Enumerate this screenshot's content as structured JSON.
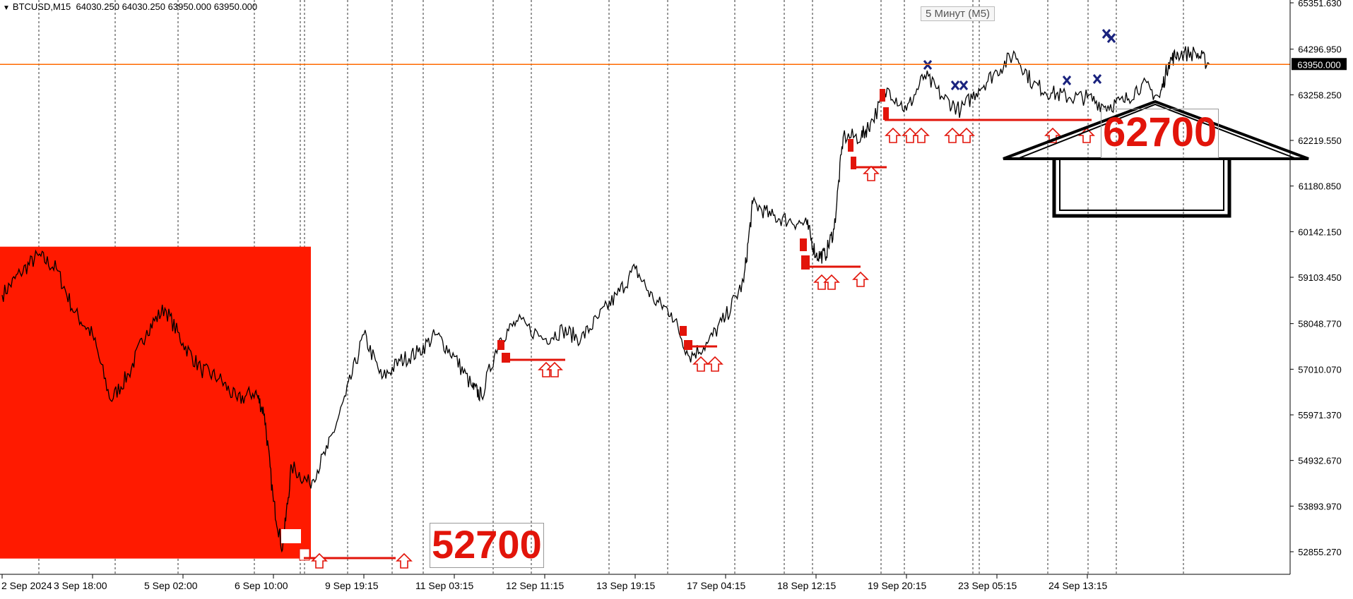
{
  "header": {
    "symbol": "BTCUSD,M15",
    "ohlc": "64030.250 64030.250 63950.000 63950.000"
  },
  "tooltip": "5 Минут (M5)",
  "price_axis": {
    "ticks": [
      "65351.630",
      "64296.950",
      "63258.250",
      "62219.550",
      "61180.850",
      "60142.150",
      "59103.450",
      "58048.770",
      "57010.070",
      "55971.370",
      "54932.670",
      "53893.970",
      "52855.270"
    ],
    "current_price": "63950.000",
    "current_price_color": "#ff6a00"
  },
  "time_axis": {
    "ticks": [
      "2 Sep 2024",
      "3 Sep 18:00",
      "5 Sep 02:00",
      "6 Sep 10:00",
      "9 Sep 19:15",
      "11 Sep 03:15",
      "12 Sep 11:15",
      "13 Sep 19:15",
      "17 Sep 04:15",
      "18 Sep 12:15",
      "19 Sep 20:15",
      "23 Sep 05:15",
      "24 Sep 13:15"
    ]
  },
  "annotations": {
    "low_label": "52700",
    "high_label": "62700",
    "zone_color": "#ff1a00",
    "marker_color": "#e2140a",
    "cross_color": "#1a237e"
  },
  "chart_data": {
    "type": "line",
    "title": "BTCUSD,M15",
    "ylim": [
      52400,
      65600
    ],
    "x": [
      "2 Sep 2024",
      "3 Sep 18:00",
      "5 Sep 02:00",
      "6 Sep 10:00",
      "9 Sep 19:15",
      "11 Sep 03:15",
      "12 Sep 11:15",
      "13 Sep 19:15",
      "17 Sep 04:15",
      "18 Sep 12:15",
      "19 Sep 20:15",
      "23 Sep 05:15",
      "24 Sep 13:15"
    ],
    "series": [
      {
        "values": [
          [
            0,
            58700
          ],
          [
            0.2,
            59200
          ],
          [
            0.4,
            59600
          ],
          [
            0.6,
            59300
          ],
          [
            0.8,
            58300
          ],
          [
            1.0,
            57800
          ],
          [
            1.2,
            56300
          ],
          [
            1.4,
            56900
          ],
          [
            1.6,
            57900
          ],
          [
            1.8,
            58400
          ],
          [
            2.0,
            57600
          ],
          [
            2.2,
            57000
          ],
          [
            2.4,
            56800
          ],
          [
            2.6,
            56300
          ],
          [
            2.8,
            56500
          ],
          [
            2.9,
            56000
          ],
          [
            3.0,
            54000
          ],
          [
            3.1,
            52900
          ],
          [
            3.2,
            54800
          ],
          [
            3.4,
            54400
          ],
          [
            3.6,
            55200
          ],
          [
            3.8,
            56400
          ],
          [
            4.0,
            57800
          ],
          [
            4.2,
            56800
          ],
          [
            4.4,
            57200
          ],
          [
            4.6,
            57400
          ],
          [
            4.8,
            57800
          ],
          [
            5.0,
            57300
          ],
          [
            5.2,
            56600
          ],
          [
            5.3,
            56400
          ],
          [
            5.5,
            57700
          ],
          [
            5.7,
            58100
          ],
          [
            6.0,
            57700
          ],
          [
            6.2,
            57900
          ],
          [
            6.4,
            57700
          ],
          [
            6.6,
            58200
          ],
          [
            6.8,
            58700
          ],
          [
            7.0,
            59300
          ],
          [
            7.2,
            58600
          ],
          [
            7.4,
            58300
          ],
          [
            7.6,
            57300
          ],
          [
            7.8,
            57600
          ],
          [
            8.0,
            58200
          ],
          [
            8.2,
            59000
          ],
          [
            8.3,
            60800
          ],
          [
            8.5,
            60500
          ],
          [
            8.7,
            60400
          ],
          [
            8.9,
            60300
          ],
          [
            9.0,
            59600
          ],
          [
            9.1,
            59600
          ],
          [
            9.2,
            60200
          ],
          [
            9.3,
            62300
          ],
          [
            9.5,
            62300
          ],
          [
            9.6,
            62600
          ],
          [
            9.8,
            63400
          ],
          [
            10.0,
            62900
          ],
          [
            10.2,
            63700
          ],
          [
            10.4,
            63200
          ],
          [
            10.6,
            62900
          ],
          [
            10.8,
            63400
          ],
          [
            11.0,
            63800
          ],
          [
            11.2,
            64200
          ],
          [
            11.4,
            63500
          ],
          [
            11.6,
            63300
          ],
          [
            11.8,
            63200
          ],
          [
            12.0,
            63200
          ],
          [
            12.2,
            63000
          ],
          [
            12.4,
            63100
          ],
          [
            12.6,
            63500
          ],
          [
            12.8,
            63200
          ],
          [
            12.9,
            64000
          ],
          [
            13.0,
            64200
          ],
          [
            13.2,
            64200
          ],
          [
            13.35,
            63950
          ]
        ]
      }
    ]
  }
}
